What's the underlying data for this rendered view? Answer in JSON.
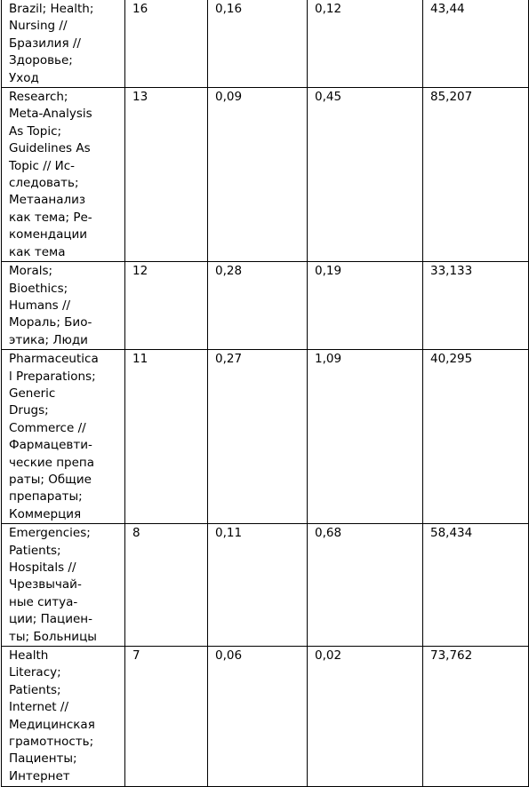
{
  "table": {
    "rows": [
      [
        [
          "Brazil; Health;",
          "Nursing //",
          "Бразилия //",
          "Здоровье;",
          "Уход"
        ],
        "16",
        "0,16",
        "0,12",
        "43,44"
      ],
      [
        [
          "Research;",
          "Meta-Analysis",
          "As Topic;",
          "Guidelines As",
          "Topic // Ис-",
          "следовать;",
          "Метаанализ",
          "как тема; Ре-",
          "комендации",
          "как тема"
        ],
        "13",
        "0,09",
        "0,45",
        "85,207"
      ],
      [
        [
          "Morals;",
          "Bioethics;",
          "Humans //",
          "Мораль; Био-",
          "этика; Люди"
        ],
        "12",
        "0,28",
        "0,19",
        "33,133"
      ],
      [
        [
          "Pharmaceutica",
          "l Preparations;",
          "Generic",
          "Drugs;",
          "Commerce //",
          "Фармацевти-",
          "ческие препа",
          "раты; Общие",
          "препараты;",
          "Коммерция"
        ],
        "11",
        "0,27",
        "1,09",
        "40,295"
      ],
      [
        [
          "Emergencies;",
          "Patients;",
          "Hospitals //",
          "Чрезвычай-",
          "ные ситуа-",
          "ции; Пациен-",
          "ты; Больницы"
        ],
        "8",
        "0,11",
        "0,68",
        "58,434"
      ],
      [
        [
          "Health",
          "Literacy;",
          "Patients;",
          "Internet //",
          "Медицинская",
          "грамотность;",
          "Пациенты;",
          "Интернет"
        ],
        "7",
        "0,06",
        "0,02",
        "73,762"
      ]
    ]
  }
}
